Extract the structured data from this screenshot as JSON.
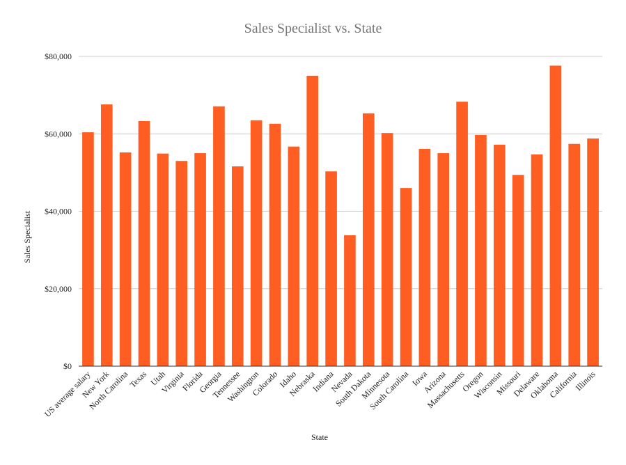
{
  "chart_data": {
    "type": "bar",
    "title": "Sales Specialist vs. State",
    "xlabel": "State",
    "ylabel": "Sales Specialist",
    "ylim": [
      0,
      80000
    ],
    "yticks": [
      0,
      20000,
      40000,
      60000,
      80000
    ],
    "ytick_labels": [
      "$0",
      "$20,000",
      "$40,000",
      "$60,000",
      "$80,000"
    ],
    "grid": true,
    "legend": "none",
    "bar_color": "#ff5e22",
    "categories": [
      "US average salary",
      "New York",
      "North Carolina",
      "Texas",
      "Utah",
      "Virginia",
      "Florida",
      "Georgia",
      "Tennessee",
      "Washington",
      "Colorado",
      "Idaho",
      "Nebraska",
      "Indiana",
      "Nevada",
      "South Dakota",
      "Minnesota",
      "South Carolina",
      "Iowa",
      "Arizona",
      "Massachusetts",
      "Oregon",
      "Wisconsin",
      "Missouri",
      "Delaware",
      "Oklahoma",
      "California",
      "Illinois"
    ],
    "values": [
      60400,
      67600,
      55200,
      63300,
      54900,
      53000,
      55000,
      67100,
      51600,
      63500,
      62600,
      56700,
      75000,
      50300,
      33800,
      65300,
      60200,
      46000,
      56100,
      55000,
      68300,
      59700,
      57200,
      49400,
      54700,
      77600,
      57400,
      58800
    ]
  }
}
